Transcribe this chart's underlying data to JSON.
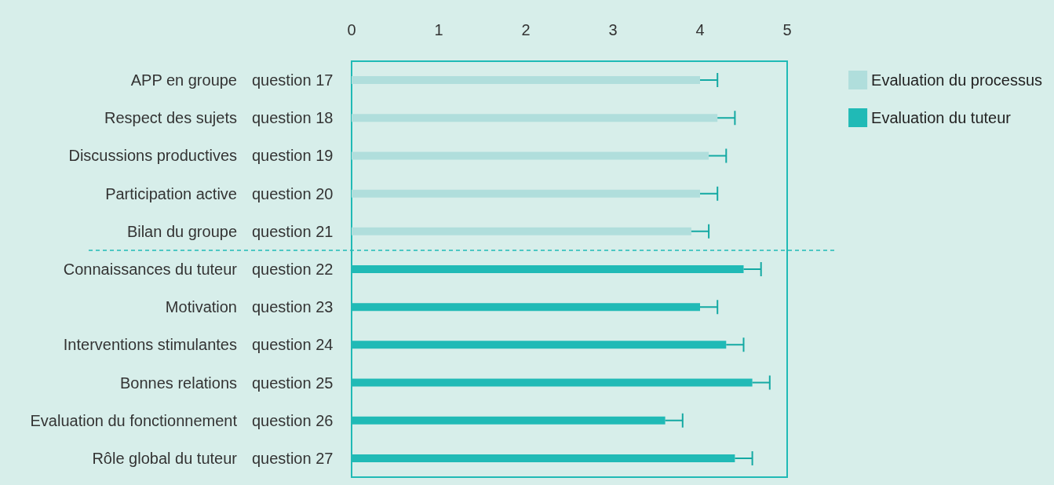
{
  "chart_data": {
    "type": "bar",
    "orientation": "horizontal",
    "categories": [
      "APP en groupe",
      "Respect des sujets",
      "Discussions productives",
      "Participation active",
      "Bilan du groupe",
      "Connaissances du tuteur",
      "Motivation",
      "Interventions stimulantes",
      "Bonnes relations",
      "Evaluation du fonctionnement",
      "Rôle global du tuteur"
    ],
    "y2_categories": [
      "question 17",
      "question 18",
      "question 19",
      "question 20",
      "question 21",
      "question 22",
      "question 23",
      "question 24",
      "question 25",
      "question 26",
      "question 27"
    ],
    "series": [
      {
        "name": "Evaluation du processus",
        "color": "#b0dedc",
        "values": [
          4.0,
          4.2,
          4.1,
          4.0,
          3.9,
          null,
          null,
          null,
          null,
          null,
          null
        ],
        "errors": [
          [
            4.0,
            4.2
          ],
          [
            4.2,
            4.4
          ],
          [
            4.1,
            4.3
          ],
          [
            4.0,
            4.2
          ],
          [
            3.9,
            4.1
          ],
          null,
          null,
          null,
          null,
          null,
          null
        ]
      },
      {
        "name": "Evaluation du tuteur",
        "color": "#20bab6",
        "values": [
          null,
          null,
          null,
          null,
          null,
          4.5,
          4.0,
          4.3,
          4.6,
          3.6,
          4.4
        ],
        "errors": [
          null,
          null,
          null,
          null,
          null,
          [
            4.5,
            4.7
          ],
          [
            4.0,
            4.2
          ],
          [
            4.3,
            4.5
          ],
          [
            4.6,
            4.8
          ],
          [
            3.6,
            3.8
          ],
          [
            4.4,
            4.6
          ]
        ]
      }
    ],
    "xlim": [
      0,
      5
    ],
    "xticks": [
      0,
      1,
      2,
      3,
      4,
      5
    ],
    "grid": false,
    "legend": "right",
    "ref_lines": [
      {
        "axis": "y",
        "value": "Connaissances du tuteur",
        "color": "#20bab6",
        "line_style": "dashed"
      }
    ]
  }
}
